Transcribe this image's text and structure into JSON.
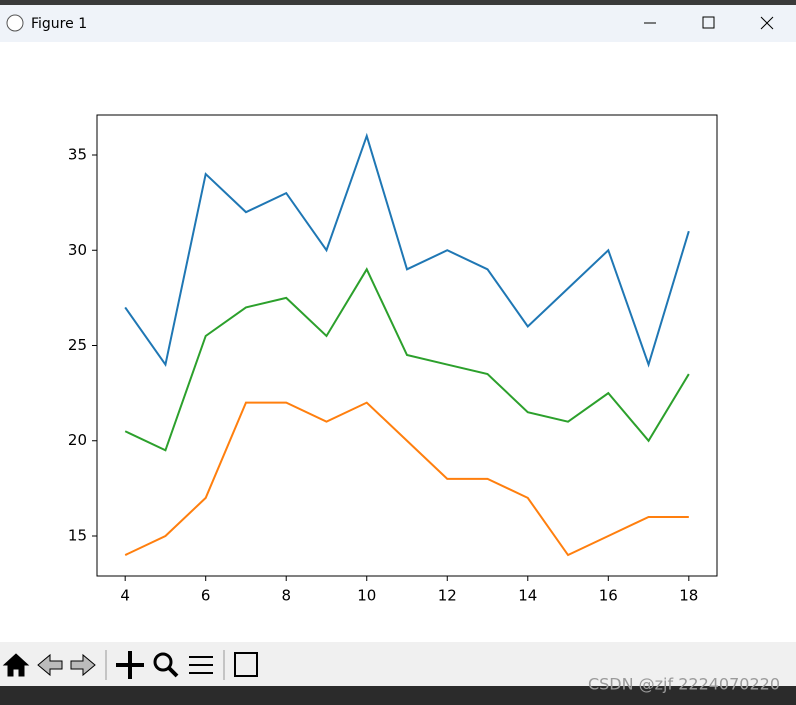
{
  "window": {
    "title": "Figure 1",
    "watermark": "CSDN @zjf 2224070220"
  },
  "chart_data": {
    "type": "line",
    "x": [
      4,
      5,
      6,
      7,
      8,
      9,
      10,
      11,
      12,
      13,
      14,
      15,
      16,
      17,
      18
    ],
    "series": [
      {
        "color": "#1f77b4",
        "values": [
          27,
          24,
          34,
          32,
          33,
          30,
          36,
          29,
          30,
          29,
          26,
          28,
          30,
          24,
          31
        ]
      },
      {
        "color": "#ff7f0e",
        "values": [
          14,
          15,
          17,
          22,
          22,
          21,
          22,
          20,
          18,
          18,
          17,
          14,
          15,
          16,
          16
        ]
      },
      {
        "color": "#2ca02c",
        "values": [
          20.5,
          19.5,
          25.5,
          27,
          27.5,
          25.5,
          29,
          24.5,
          24,
          23.5,
          21.5,
          21,
          22.5,
          20,
          23.5
        ]
      }
    ],
    "xlim": [
      3.3,
      18.7
    ],
    "xticks": [
      4,
      6,
      8,
      10,
      12,
      14,
      16,
      18
    ],
    "ylim": [
      12.9,
      37.1
    ],
    "yticks": [
      15,
      20,
      25,
      30,
      35
    ]
  }
}
